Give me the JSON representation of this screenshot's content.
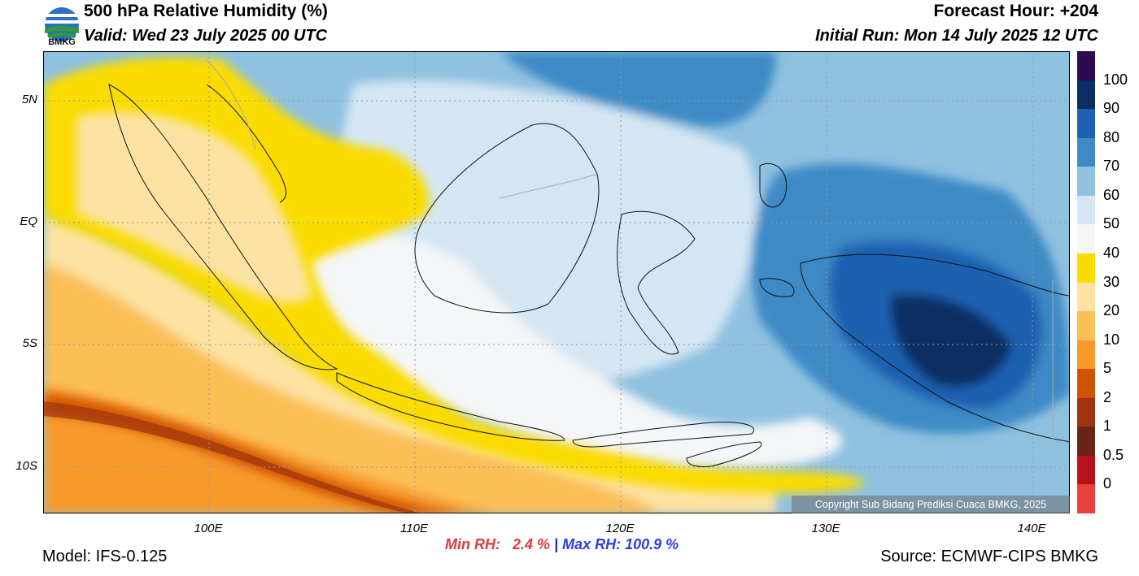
{
  "header": {
    "title": "500 hPa Relative Humidity (%)",
    "valid": "Valid: Wed 23 July 2025 00 UTC",
    "forecast_hour": "Forecast Hour: +204",
    "initial_run": "Initial Run: Mon 14 July 2025 12 UTC",
    "logo_text": "BMKG"
  },
  "map": {
    "lat_labels": [
      "5N",
      "EQ",
      "5S",
      "10S"
    ],
    "lon_labels": [
      "100E",
      "110E",
      "120E",
      "130E",
      "140E"
    ],
    "copyright": "Copyright Sub Bidang Prediksi Cuaca BMKG, 2025"
  },
  "colorbar": {
    "labels": [
      "100",
      "90",
      "80",
      "70",
      "60",
      "50",
      "40",
      "30",
      "20",
      "10",
      "5",
      "2",
      "1",
      "0.5",
      "0"
    ],
    "colors": [
      "#2e0a52",
      "#0b2e63",
      "#1f61b0",
      "#3d8ac6",
      "#8fc1e0",
      "#d4e6f3",
      "#f4f6f8",
      "#fadc00",
      "#fbe2a2",
      "#fbbf57",
      "#f79a2c",
      "#d35400",
      "#9e3510",
      "#6a2314",
      "#b5121b",
      "#e8413b"
    ]
  },
  "footer": {
    "model": "Model: IFS-0.125",
    "min_rh_label": "Min RH:",
    "min_rh_value": "2.4 %",
    "separator": " | ",
    "max_rh": "Max RH: 100.9 %",
    "source": "Source: ECMWF-CIPS BMKG"
  }
}
